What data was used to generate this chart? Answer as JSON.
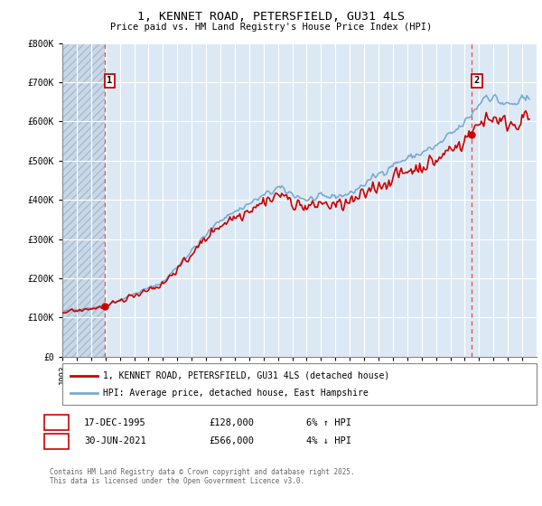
{
  "title": "1, KENNET ROAD, PETERSFIELD, GU31 4LS",
  "subtitle": "Price paid vs. HM Land Registry's House Price Index (HPI)",
  "ylim": [
    0,
    800000
  ],
  "yticks": [
    0,
    100000,
    200000,
    300000,
    400000,
    500000,
    600000,
    700000,
    800000
  ],
  "ytick_labels": [
    "£0",
    "£100K",
    "£200K",
    "£300K",
    "£400K",
    "£500K",
    "£600K",
    "£700K",
    "£800K"
  ],
  "background_color": "#ffffff",
  "plot_bg_color": "#dce9f5",
  "hatch_bg_color": "#c8d8e8",
  "grid_color": "#ffffff",
  "sale1_date": 1995.96,
  "sale1_price": 128000,
  "sale2_date": 2021.5,
  "sale2_price": 566000,
  "line_color_property": "#cc0000",
  "line_color_hpi": "#7aaad0",
  "legend_label_property": "1, KENNET ROAD, PETERSFIELD, GU31 4LS (detached house)",
  "legend_label_hpi": "HPI: Average price, detached house, East Hampshire",
  "footer": "Contains HM Land Registry data © Crown copyright and database right 2025.\nThis data is licensed under the Open Government Licence v3.0.",
  "xmin": 1993,
  "xmax": 2026
}
